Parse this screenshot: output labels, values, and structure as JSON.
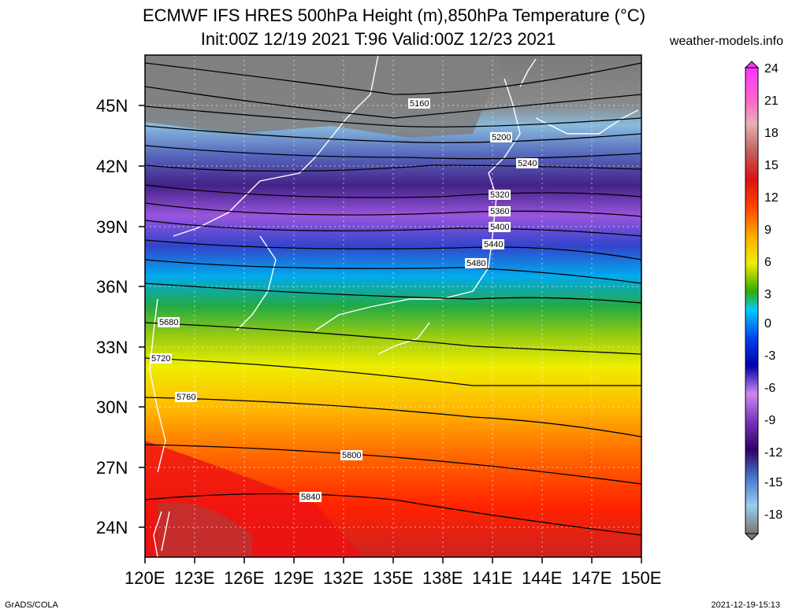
{
  "header": {
    "title_line1": "ECMWF IFS HRES 500hPa Height (m),850hPa Temperature (°C)",
    "title_line2": "Init:00Z 12/19 2021 T:96 Valid:00Z 12/23 2021",
    "site": "weather-models.info"
  },
  "map": {
    "lat_labels": [
      "45N",
      "42N",
      "39N",
      "36N",
      "33N",
      "30N",
      "27N",
      "24N"
    ],
    "lon_labels": [
      "120E",
      "123E",
      "126E",
      "129E",
      "132E",
      "135E",
      "138E",
      "141E",
      "144E",
      "147E",
      "150E"
    ],
    "contour_labels": [
      "5160",
      "5200",
      "5240",
      "5320",
      "5360",
      "5400",
      "5440",
      "5480",
      "5680",
      "5720",
      "5760",
      "5800",
      "5840"
    ]
  },
  "colorbar": {
    "labels": [
      "24",
      "21",
      "18",
      "15",
      "12",
      "9",
      "6",
      "3",
      "0",
      "-3",
      "-6",
      "-9",
      "-12",
      "-15",
      "-18"
    ],
    "colors": [
      "#ff33ff",
      "#ff66cc",
      "#e8b0b0",
      "#c06060",
      "#cc2222",
      "#ff0000",
      "#ff6600",
      "#ffaa00",
      "#ffcc00",
      "#ffff00",
      "#a8d800",
      "#55aa00",
      "#009900",
      "#00cccc",
      "#00aaff",
      "#0055ff",
      "#0000cc",
      "#3300aa",
      "#7733cc",
      "#aa55ee",
      "#cc88ee",
      "#552288",
      "#330066",
      "#3344aa",
      "#4477cc",
      "#66aadd",
      "#99ccee",
      "#777777"
    ]
  },
  "footer": {
    "left": "GrADS/COLA",
    "right": "2021-12-19-15:13"
  }
}
